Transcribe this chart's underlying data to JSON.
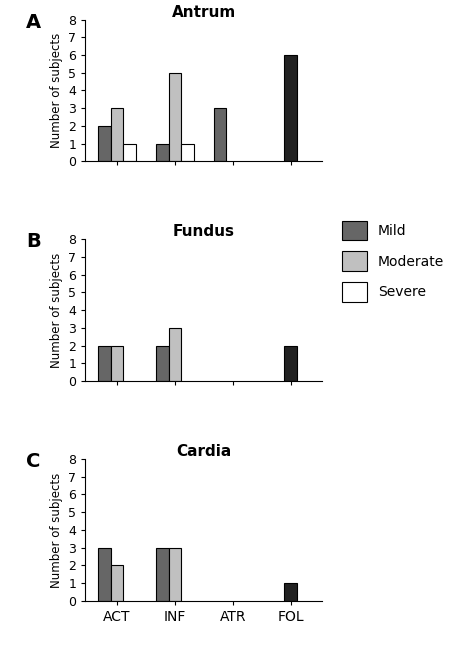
{
  "panels": [
    {
      "title": "Antrum",
      "label": "A",
      "categories": [
        "ACT",
        "INF",
        "ATR",
        "FOL"
      ],
      "mild": [
        2,
        1,
        3,
        0
      ],
      "moderate": [
        3,
        5,
        0,
        0
      ],
      "severe": [
        1,
        1,
        0,
        0
      ],
      "fol_dark": [
        0,
        0,
        0,
        6
      ]
    },
    {
      "title": "Fundus",
      "label": "B",
      "categories": [
        "ACT",
        "INF",
        "ATR",
        "FOL"
      ],
      "mild": [
        2,
        2,
        0,
        0
      ],
      "moderate": [
        2,
        3,
        0,
        0
      ],
      "severe": [
        0,
        0,
        0,
        0
      ],
      "fol_dark": [
        0,
        0,
        0,
        2
      ]
    },
    {
      "title": "Cardia",
      "label": "C",
      "categories": [
        "ACT",
        "INF",
        "ATR",
        "FOL"
      ],
      "mild": [
        3,
        3,
        0,
        0
      ],
      "moderate": [
        2,
        3,
        0,
        0
      ],
      "severe": [
        0,
        0,
        0,
        0
      ],
      "fol_dark": [
        0,
        0,
        0,
        1
      ]
    }
  ],
  "color_mild": "#666666",
  "color_moderate": "#c0c0c0",
  "color_severe": "#ffffff",
  "color_fol_dark": "#222222",
  "bar_edge": "#000000",
  "ylabel": "Number of subjects",
  "ylim": [
    0,
    8
  ],
  "yticks": [
    0,
    1,
    2,
    3,
    4,
    5,
    6,
    7,
    8
  ],
  "background_color": "#ffffff"
}
